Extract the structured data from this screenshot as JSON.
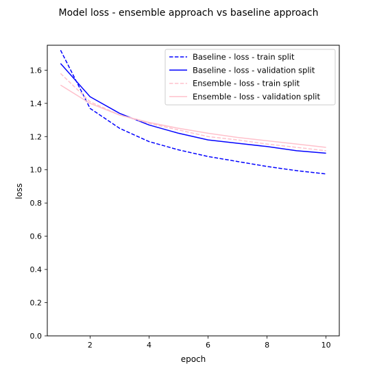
{
  "chart_data": {
    "type": "line",
    "title": "Model loss - ensemble approach vs baseline approach",
    "xlabel": "epoch",
    "ylabel": "loss",
    "x": [
      1,
      2,
      3,
      4,
      5,
      6,
      7,
      8,
      9,
      10
    ],
    "xlim": [
      0.55,
      10.45
    ],
    "ylim": [
      0.0,
      1.75
    ],
    "x_ticks": [
      2,
      4,
      6,
      8,
      10
    ],
    "y_ticks": [
      0.0,
      0.2,
      0.4,
      0.6,
      0.8,
      1.0,
      1.2,
      1.4,
      1.6
    ],
    "x_tick_labels": [
      "2",
      "4",
      "6",
      "8",
      "10"
    ],
    "y_tick_labels": [
      "0.0",
      "0.2",
      "0.4",
      "0.6",
      "0.8",
      "1.0",
      "1.2",
      "1.4",
      "1.6"
    ],
    "grid": false,
    "legend_position": "top-right",
    "series": [
      {
        "name": "Baseline - loss - train split",
        "color": "#0000ff",
        "style": "dashed",
        "values": [
          1.72,
          1.37,
          1.25,
          1.17,
          1.12,
          1.08,
          1.05,
          1.02,
          0.995,
          0.975
        ]
      },
      {
        "name": "Baseline - loss - validation split",
        "color": "#0000ff",
        "style": "solid",
        "values": [
          1.64,
          1.44,
          1.34,
          1.27,
          1.22,
          1.18,
          1.16,
          1.14,
          1.115,
          1.1
        ]
      },
      {
        "name": "Ensemble - loss - train split",
        "color": "#ffc0cb",
        "style": "dashed",
        "values": [
          1.58,
          1.41,
          1.33,
          1.28,
          1.24,
          1.2,
          1.18,
          1.155,
          1.135,
          1.115
        ]
      },
      {
        "name": "Ensemble - loss - validation split",
        "color": "#ffc0cb",
        "style": "solid",
        "values": [
          1.51,
          1.4,
          1.33,
          1.285,
          1.25,
          1.22,
          1.195,
          1.175,
          1.155,
          1.135
        ]
      }
    ]
  }
}
